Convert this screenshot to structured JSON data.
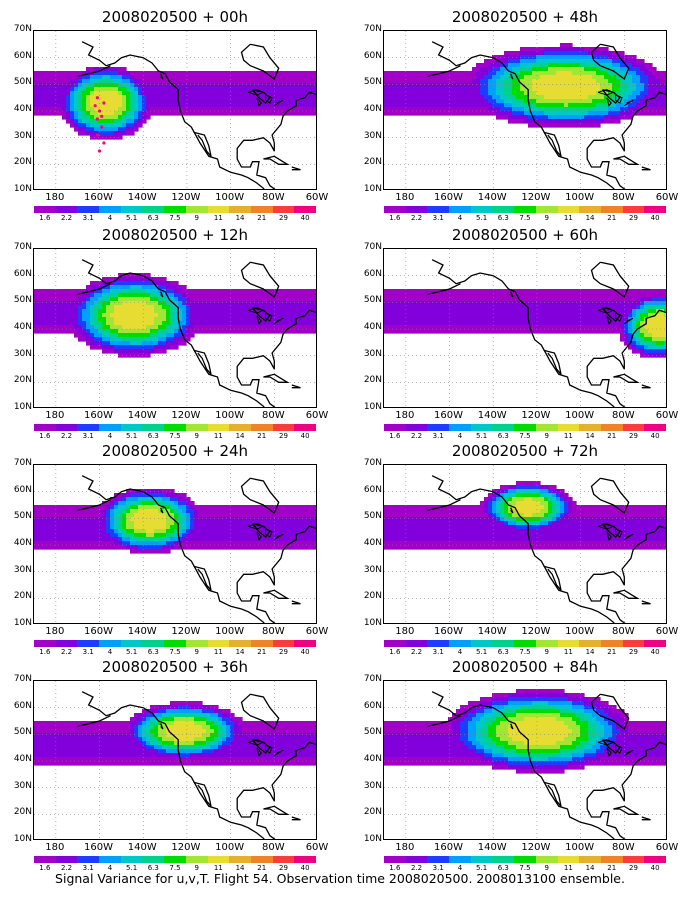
{
  "caption": "Signal Variance for u,v,T. Flight 54. Observation time 2008020500. 2008013100 ensemble.",
  "y_ticks": [
    "70N",
    "60N",
    "50N",
    "40N",
    "30N",
    "20N",
    "10N"
  ],
  "x_ticks": [
    "180",
    "160W",
    "140W",
    "120W",
    "100W",
    "80W",
    "60W"
  ],
  "colorbar": {
    "labels": [
      "1.6",
      "2.2",
      "3.1",
      "4",
      "5.1",
      "6.3",
      "7.5",
      "9",
      "11",
      "14",
      "21",
      "29",
      "40"
    ],
    "colors": [
      "#a000c8",
      "#8200dc",
      "#1e3cff",
      "#00a0ff",
      "#00c8c8",
      "#00d28c",
      "#00dc00",
      "#a0e632",
      "#e6dc32",
      "#e6af2d",
      "#f08228",
      "#fa3c3c",
      "#f00082"
    ]
  },
  "chart_data": [
    {
      "type": "heatmap",
      "title": "2008020500 + 00h",
      "lead_hours": 0,
      "xlim": [
        "180",
        "60W"
      ],
      "ylim": [
        "10N",
        "70N"
      ],
      "blobs": [
        {
          "lon": -158,
          "lat": 44,
          "peak": 14,
          "spread_lon": 14,
          "spread_lat": 9
        }
      ],
      "obs_track": "flight 54 points near 160W, 25N-45N"
    },
    {
      "type": "heatmap",
      "title": "2008020500 + 48h",
      "lead_hours": 48,
      "xlim": [
        "180",
        "60W"
      ],
      "ylim": [
        "10N",
        "70N"
      ],
      "blobs": [
        {
          "lon": -108,
          "lat": 50,
          "peak": 14,
          "spread_lon": 30,
          "spread_lat": 10
        }
      ]
    },
    {
      "type": "heatmap",
      "title": "2008020500 + 12h",
      "lead_hours": 12,
      "xlim": [
        "180",
        "60W"
      ],
      "ylim": [
        "10N",
        "70N"
      ],
      "blobs": [
        {
          "lon": -145,
          "lat": 46,
          "peak": 14,
          "spread_lon": 20,
          "spread_lat": 10
        }
      ]
    },
    {
      "type": "heatmap",
      "title": "2008020500 + 60h",
      "lead_hours": 60,
      "xlim": [
        "180",
        "60W"
      ],
      "ylim": [
        "10N",
        "70N"
      ],
      "blobs": [
        {
          "lon": -65,
          "lat": 42,
          "peak": 14,
          "spread_lon": 12,
          "spread_lat": 8
        }
      ]
    },
    {
      "type": "heatmap",
      "title": "2008020500 + 24h",
      "lead_hours": 24,
      "xlim": [
        "180",
        "60W"
      ],
      "ylim": [
        "10N",
        "70N"
      ],
      "blobs": [
        {
          "lon": -138,
          "lat": 50,
          "peak": 14,
          "spread_lon": 16,
          "spread_lat": 8
        }
      ]
    },
    {
      "type": "heatmap",
      "title": "2008020500 + 72h",
      "lead_hours": 72,
      "xlim": [
        "180",
        "60W"
      ],
      "ylim": [
        "10N",
        "70N"
      ],
      "blobs": [
        {
          "lon": -125,
          "lat": 55,
          "peak": 14,
          "spread_lon": 14,
          "spread_lat": 6
        }
      ]
    },
    {
      "type": "heatmap",
      "title": "2008020500 + 36h",
      "lead_hours": 36,
      "xlim": [
        "180",
        "60W"
      ],
      "ylim": [
        "10N",
        "70N"
      ],
      "blobs": [
        {
          "lon": -122,
          "lat": 52,
          "peak": 14,
          "spread_lon": 18,
          "spread_lat": 7
        }
      ]
    },
    {
      "type": "heatmap",
      "title": "2008020500 + 84h",
      "lead_hours": 84,
      "xlim": [
        "180",
        "60W"
      ],
      "ylim": [
        "10N",
        "70N"
      ],
      "blobs": [
        {
          "lon": -120,
          "lat": 52,
          "peak": 14,
          "spread_lon": 28,
          "spread_lat": 10
        }
      ]
    }
  ]
}
